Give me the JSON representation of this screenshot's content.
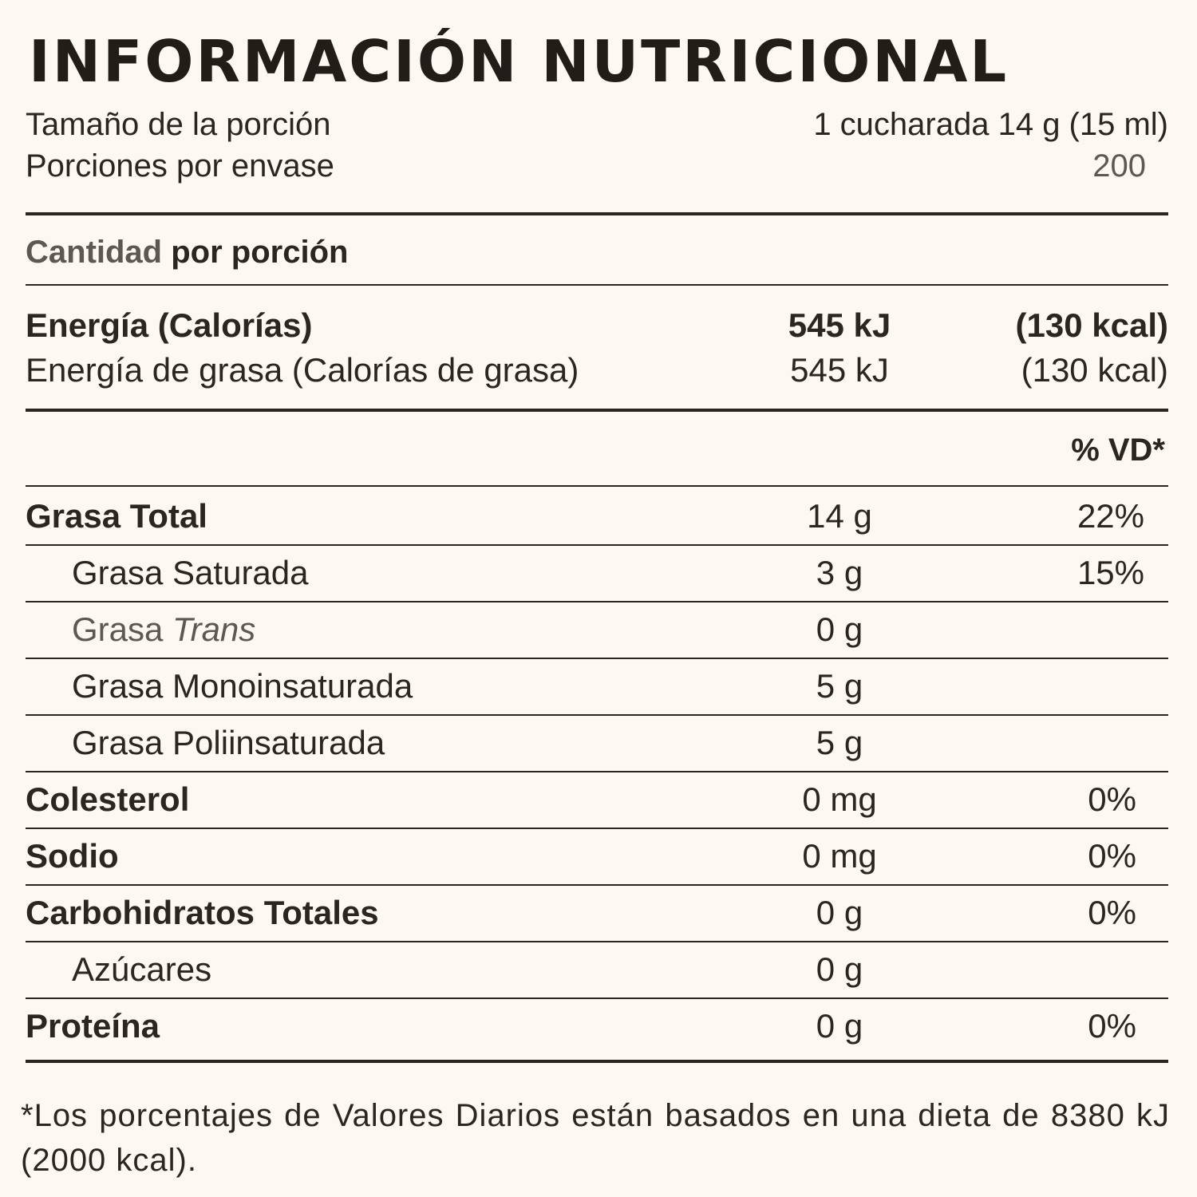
{
  "title": "INFORMACIÓN NUTRICIONAL",
  "serving": {
    "size_label": "Tamaño de la porción",
    "size_value": "1 cucharada 14 g (15 ml)",
    "per_container_label": "Porciones por envase",
    "per_container_value": "200"
  },
  "amount_header": {
    "part1": "Cantidad",
    "part2": "por porción"
  },
  "energy": {
    "label": "Energía (Calorías)",
    "kj": "545 kJ",
    "kcal": "(130 kcal)"
  },
  "energy_fat": {
    "label": "Energía de grasa (Calorías de grasa)",
    "kj": "545 kJ",
    "kcal": "(130 kcal)"
  },
  "dv_header": "% VD*",
  "nutrients": {
    "total_fat": {
      "label": "Grasa Total",
      "amount": "14 g",
      "dv": "22%"
    },
    "saturated_fat": {
      "label": "Grasa Saturada",
      "amount": "3 g",
      "dv": "15%"
    },
    "trans_fat": {
      "label_prefix": "Grasa",
      "label_italic": "Trans",
      "amount": "0 g"
    },
    "mono_fat": {
      "label": "Grasa Monoinsaturada",
      "amount": "5 g"
    },
    "poly_fat": {
      "label": "Grasa Poliinsaturada",
      "amount": "5 g"
    },
    "cholesterol": {
      "label": "Colesterol",
      "amount": "0 mg",
      "dv": "0%"
    },
    "sodium": {
      "label": "Sodio",
      "amount": "0 mg",
      "dv": "0%"
    },
    "carbs": {
      "label": "Carbohidratos Totales",
      "amount": "0 g",
      "dv": "0%"
    },
    "sugars": {
      "label": "Azúcares",
      "amount": "0 g"
    },
    "protein": {
      "label": "Proteína",
      "amount": "0 g",
      "dv": "0%"
    }
  },
  "footnote": "*Los porcentajes de Valores Diarios están basados en una dieta de 8380 kJ (2000 kcal)."
}
